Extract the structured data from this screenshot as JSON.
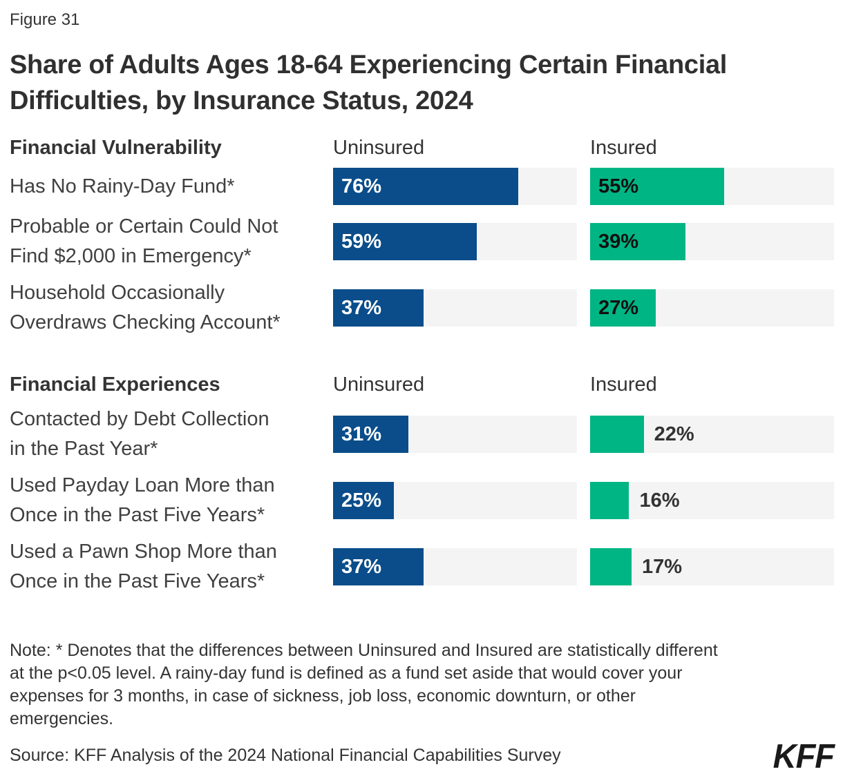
{
  "figure_label": "Figure 31",
  "title": "Share of Adults Ages 18-64 Experiencing Certain Financial\nDifficulties, by Insurance Status, 2024",
  "colors": {
    "uninsured_bar": "#0a4d8a",
    "insured_bar": "#00b584",
    "bar_track": "#f4f4f4",
    "text": "#333333"
  },
  "sections": [
    {
      "heading": "Financial Vulnerability",
      "col_uninsured": "Uninsured",
      "col_insured": "Insured",
      "rows": [
        {
          "label": "Has No Rainy-Day Fund*",
          "uninsured": 76,
          "insured": 55
        },
        {
          "label": "Probable or Certain Could Not\nFind $2,000 in Emergency*",
          "uninsured": 59,
          "insured": 39
        },
        {
          "label": "Household Occasionally\nOverdraws Checking Account*",
          "uninsured": 37,
          "insured": 27
        }
      ]
    },
    {
      "heading": "Financial Experiences",
      "col_uninsured": "Uninsured",
      "col_insured": "Insured",
      "rows": [
        {
          "label": "Contacted by Debt Collection\nin the Past Year*",
          "uninsured": 31,
          "insured": 22
        },
        {
          "label": "Used Payday Loan More than\nOnce in the Past Five Years*",
          "uninsured": 25,
          "insured": 16
        },
        {
          "label": "Used a Pawn Shop More than\nOnce in the Past Five Years*",
          "uninsured": 37,
          "insured": 17
        }
      ]
    }
  ],
  "note": "Note: * Denotes that the differences between Uninsured and Insured are statistically different\nat the p<0.05 level. A rainy-day fund is defined as a fund set aside that would cover your\nexpenses for 3 months, in case of sickness, job loss, economic downturn, or other\nemergencies.",
  "source": "Source: KFF Analysis of the 2024 National Financial Capabilities Survey",
  "logo": "KFF",
  "chart_data": [
    {
      "type": "bar",
      "orientation": "horizontal",
      "title": "Share of Adults Ages 18-64 Experiencing Certain Financial Difficulties, by Insurance Status, 2024",
      "group_title": "Financial Vulnerability",
      "categories": [
        "Has No Rainy-Day Fund*",
        "Probable or Certain Could Not Find $2,000 in Emergency*",
        "Household Occasionally Overdraws Checking Account*"
      ],
      "series": [
        {
          "name": "Uninsured",
          "values": [
            76,
            59,
            37
          ],
          "color": "#0a4d8a"
        },
        {
          "name": "Insured",
          "values": [
            55,
            39,
            27
          ],
          "color": "#00b584"
        }
      ],
      "unit": "%",
      "xlim": [
        0,
        100
      ],
      "grid": false,
      "legend_position": "column-headers",
      "value_labels": "inside-bar-start"
    },
    {
      "type": "bar",
      "orientation": "horizontal",
      "title": "Share of Adults Ages 18-64 Experiencing Certain Financial Difficulties, by Insurance Status, 2024",
      "group_title": "Financial Experiences",
      "categories": [
        "Contacted by Debt Collection in the Past Year*",
        "Used Payday Loan More than Once in the Past Five Years*",
        "Used a Pawn Shop More than Once in the Past Five Years*"
      ],
      "series": [
        {
          "name": "Uninsured",
          "values": [
            31,
            25,
            37
          ],
          "color": "#0a4d8a"
        },
        {
          "name": "Insured",
          "values": [
            22,
            16,
            17
          ],
          "color": "#00b584"
        }
      ],
      "unit": "%",
      "xlim": [
        0,
        100
      ],
      "grid": false,
      "legend_position": "column-headers",
      "value_labels": "uninsured-inside, insured-outside"
    }
  ]
}
